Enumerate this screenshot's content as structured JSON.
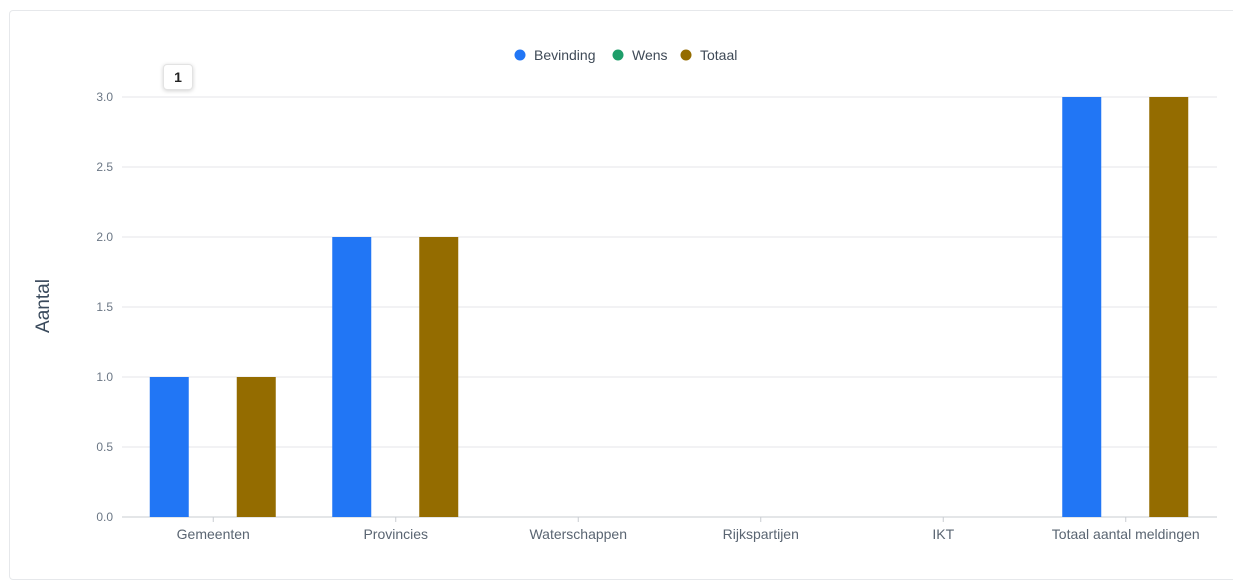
{
  "chart_data": {
    "type": "bar",
    "categories": [
      "Gemeenten",
      "Provincies",
      "Waterschappen",
      "Rijkspartijen",
      "IKT",
      "Totaal aantal meldingen"
    ],
    "series": [
      {
        "name": "Bevinding",
        "color": "#2176f5",
        "values": [
          1,
          2,
          0,
          0,
          0,
          3
        ]
      },
      {
        "name": "Wens",
        "color": "#1e9e6a",
        "values": [
          0,
          0,
          0,
          0,
          0,
          0
        ]
      },
      {
        "name": "Totaal",
        "color": "#946c00",
        "values": [
          1,
          2,
          0,
          0,
          0,
          3
        ]
      }
    ],
    "title": "",
    "xlabel": "",
    "ylabel": "Aantal",
    "ylim": [
      0,
      3
    ],
    "yticks": [
      "0.0",
      "0.5",
      "1.0",
      "1.5",
      "2.0",
      "2.5",
      "3.0"
    ],
    "grid": true,
    "legend_position": "top-center",
    "tooltip": "1"
  }
}
